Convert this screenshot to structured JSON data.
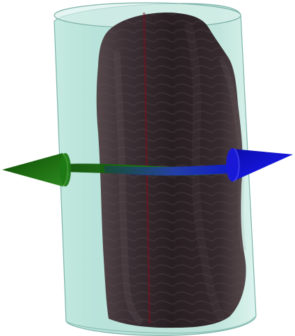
{
  "scene": {
    "objects": [
      {
        "id": "container",
        "shape": "translucent cylinder",
        "color": "#9fd6cb"
      },
      {
        "id": "specimen",
        "shape": "ribbed screw-like volume",
        "color": "#2a161b"
      },
      {
        "id": "axis-line",
        "shape": "center line",
        "color": "#7a1020"
      },
      {
        "id": "left-arrow",
        "shape": "cone arrow",
        "color": "#1f6f12"
      },
      {
        "id": "right-arrow",
        "shape": "cone arrow",
        "color": "#1010d8"
      }
    ]
  }
}
